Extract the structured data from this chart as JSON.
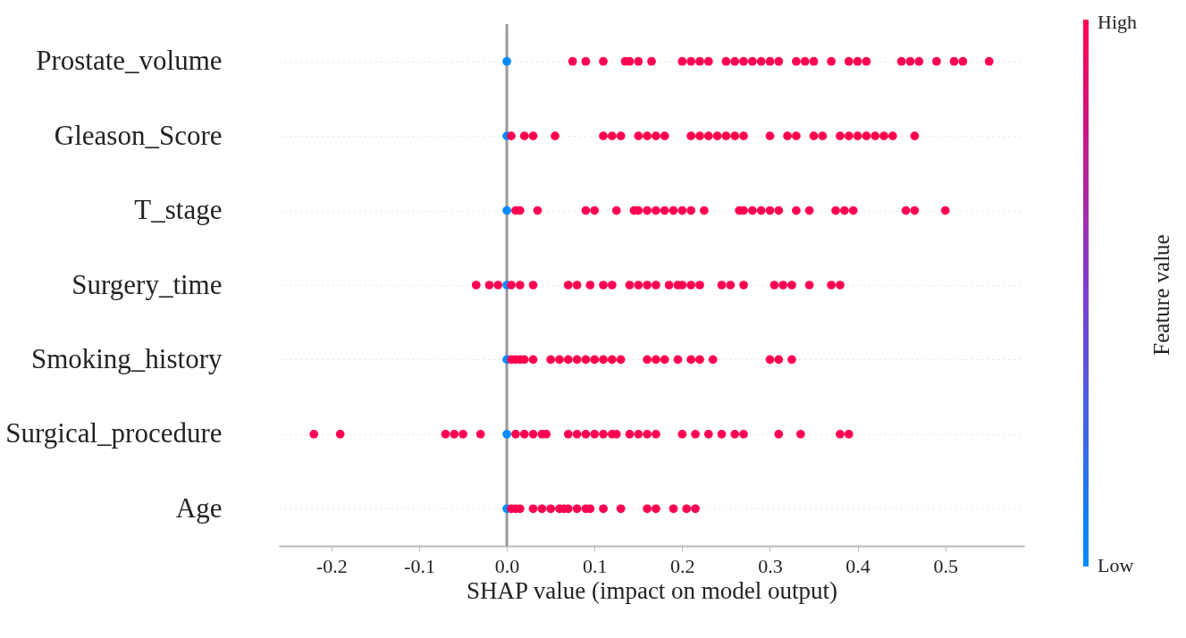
{
  "chart_data": {
    "type": "scatter",
    "orientation": "horizontal",
    "xlabel": "SHAP value (impact on model output)",
    "clabel": "Feature value",
    "annotations": [
      "High",
      "Low"
    ],
    "categories": [
      "Prostate_volume",
      "Gleason_Score",
      "T_stage",
      "Surgery_time",
      "Smoking_history",
      "Surgical_procedure",
      "Age"
    ],
    "xlim": [
      -0.26,
      0.59
    ],
    "xticks": [
      -0.2,
      -0.1,
      {
        "value": 0,
        "label": "0.0"
      },
      0.1,
      0.2,
      0.3,
      0.4,
      0.5
    ],
    "grid": "y",
    "line_style": "dotted",
    "marker": "circle",
    "ref_lines": [
      {
        "axis": "x",
        "value": 0,
        "color": "#999999"
      }
    ],
    "series": [
      {
        "color": "#008bfb",
        "x": [
          "Prostate_volume",
          "Gleason_Score",
          "T_stage",
          "Surgery_time",
          "Smoking_history",
          "Surgical_procedure",
          "Age"
        ],
        "values": [
          0,
          0,
          0,
          0,
          0,
          0,
          0
        ]
      },
      {
        "color": "#ff0051",
        "x": [
          "Prostate_volume",
          "Prostate_volume",
          "Prostate_volume",
          "Prostate_volume",
          "Prostate_volume",
          "Prostate_volume",
          "Prostate_volume",
          "Prostate_volume",
          "Prostate_volume",
          "Prostate_volume",
          "Prostate_volume",
          "Prostate_volume",
          "Prostate_volume",
          "Prostate_volume",
          "Prostate_volume",
          "Prostate_volume",
          "Prostate_volume",
          "Prostate_volume",
          "Prostate_volume",
          "Prostate_volume",
          "Prostate_volume",
          "Prostate_volume",
          "Prostate_volume",
          "Prostate_volume",
          "Prostate_volume",
          "Prostate_volume",
          "Prostate_volume",
          "Prostate_volume",
          "Prostate_volume",
          "Prostate_volume",
          "Prostate_volume",
          "Prostate_volume",
          "Gleason_Score",
          "Gleason_Score",
          "Gleason_Score",
          "Gleason_Score",
          "Gleason_Score",
          "Gleason_Score",
          "Gleason_Score",
          "Gleason_Score",
          "Gleason_Score",
          "Gleason_Score",
          "Gleason_Score",
          "Gleason_Score",
          "Gleason_Score",
          "Gleason_Score",
          "Gleason_Score",
          "Gleason_Score",
          "Gleason_Score",
          "Gleason_Score",
          "Gleason_Score",
          "Gleason_Score",
          "Gleason_Score",
          "Gleason_Score",
          "Gleason_Score",
          "Gleason_Score",
          "Gleason_Score",
          "Gleason_Score",
          "Gleason_Score",
          "Gleason_Score",
          "Gleason_Score",
          "Gleason_Score",
          "Gleason_Score",
          "T_stage",
          "T_stage",
          "T_stage",
          "T_stage",
          "T_stage",
          "T_stage",
          "T_stage",
          "T_stage",
          "T_stage",
          "T_stage",
          "T_stage",
          "T_stage",
          "T_stage",
          "T_stage",
          "T_stage",
          "T_stage",
          "T_stage",
          "T_stage",
          "T_stage",
          "T_stage",
          "T_stage",
          "T_stage",
          "T_stage",
          "T_stage",
          "T_stage",
          "T_stage",
          "T_stage",
          "T_stage",
          "T_stage",
          "Surgery_time",
          "Surgery_time",
          "Surgery_time",
          "Surgery_time",
          "Surgery_time",
          "Surgery_time",
          "Surgery_time",
          "Surgery_time",
          "Surgery_time",
          "Surgery_time",
          "Surgery_time",
          "Surgery_time",
          "Surgery_time",
          "Surgery_time",
          "Surgery_time",
          "Surgery_time",
          "Surgery_time",
          "Surgery_time",
          "Surgery_time",
          "Surgery_time",
          "Surgery_time",
          "Surgery_time",
          "Surgery_time",
          "Surgery_time",
          "Surgery_time",
          "Surgery_time",
          "Surgery_time",
          "Surgery_time",
          "Surgery_time",
          "Smoking_history",
          "Smoking_history",
          "Smoking_history",
          "Smoking_history",
          "Smoking_history",
          "Smoking_history",
          "Smoking_history",
          "Smoking_history",
          "Smoking_history",
          "Smoking_history",
          "Smoking_history",
          "Smoking_history",
          "Smoking_history",
          "Smoking_history",
          "Smoking_history",
          "Smoking_history",
          "Smoking_history",
          "Smoking_history",
          "Smoking_history",
          "Smoking_history",
          "Smoking_history",
          "Smoking_history",
          "Smoking_history",
          "Smoking_history",
          "Surgical_procedure",
          "Surgical_procedure",
          "Surgical_procedure",
          "Surgical_procedure",
          "Surgical_procedure",
          "Surgical_procedure",
          "Surgical_procedure",
          "Surgical_procedure",
          "Surgical_procedure",
          "Surgical_procedure",
          "Surgical_procedure",
          "Surgical_procedure",
          "Surgical_procedure",
          "Surgical_procedure",
          "Surgical_procedure",
          "Surgical_procedure",
          "Surgical_procedure",
          "Surgical_procedure",
          "Surgical_procedure",
          "Surgical_procedure",
          "Surgical_procedure",
          "Surgical_procedure",
          "Surgical_procedure",
          "Surgical_procedure",
          "Surgical_procedure",
          "Surgical_procedure",
          "Surgical_procedure",
          "Surgical_procedure",
          "Surgical_procedure",
          "Surgical_procedure",
          "Surgical_procedure",
          "Surgical_procedure",
          "Age",
          "Age",
          "Age",
          "Age",
          "Age",
          "Age",
          "Age",
          "Age",
          "Age",
          "Age",
          "Age",
          "Age",
          "Age",
          "Age",
          "Age",
          "Age",
          "Age",
          "Age",
          "Age"
        ],
        "values": [
          0.075,
          0.09,
          0.11,
          0.135,
          0.14,
          0.15,
          0.165,
          0.2,
          0.21,
          0.22,
          0.23,
          0.25,
          0.26,
          0.27,
          0.28,
          0.29,
          0.3,
          0.31,
          0.33,
          0.34,
          0.35,
          0.37,
          0.39,
          0.4,
          0.41,
          0.45,
          0.46,
          0.47,
          0.49,
          0.51,
          0.52,
          0.55,
          0.005,
          0.02,
          0.03,
          0.055,
          0.11,
          0.12,
          0.13,
          0.15,
          0.16,
          0.17,
          0.18,
          0.21,
          0.22,
          0.23,
          0.24,
          0.25,
          0.26,
          0.27,
          0.3,
          0.32,
          0.33,
          0.35,
          0.36,
          0.38,
          0.39,
          0.4,
          0.41,
          0.42,
          0.43,
          0.44,
          0.465,
          0.01,
          0.015,
          0.035,
          0.09,
          0.1,
          0.125,
          0.145,
          0.15,
          0.16,
          0.17,
          0.18,
          0.19,
          0.2,
          0.21,
          0.225,
          0.265,
          0.27,
          0.28,
          0.29,
          0.3,
          0.31,
          0.33,
          0.345,
          0.375,
          0.385,
          0.395,
          0.455,
          0.465,
          0.5,
          -0.035,
          -0.02,
          -0.01,
          0.005,
          0.015,
          0.03,
          0.07,
          0.08,
          0.095,
          0.11,
          0.12,
          0.14,
          0.15,
          0.16,
          0.17,
          0.185,
          0.195,
          0.2,
          0.21,
          0.22,
          0.245,
          0.255,
          0.27,
          0.305,
          0.315,
          0.325,
          0.345,
          0.37,
          0.38,
          0.005,
          0.01,
          0.015,
          0.02,
          0.03,
          0.05,
          0.06,
          0.07,
          0.08,
          0.09,
          0.1,
          0.11,
          0.12,
          0.13,
          0.16,
          0.17,
          0.18,
          0.195,
          0.21,
          0.22,
          0.235,
          0.3,
          0.31,
          0.325,
          -0.22,
          -0.19,
          -0.07,
          -0.06,
          -0.05,
          -0.03,
          0.01,
          0.02,
          0.03,
          0.04,
          0.045,
          0.07,
          0.08,
          0.09,
          0.1,
          0.11,
          0.12,
          0.125,
          0.14,
          0.15,
          0.16,
          0.17,
          0.2,
          0.215,
          0.23,
          0.245,
          0.26,
          0.27,
          0.31,
          0.335,
          0.38,
          0.39,
          0.005,
          0.01,
          0.015,
          0.03,
          0.04,
          0.05,
          0.06,
          0.065,
          0.07,
          0.08,
          0.09,
          0.095,
          0.11,
          0.13,
          0.16,
          0.17,
          0.19,
          0.205,
          0.215
        ]
      }
    ]
  }
}
